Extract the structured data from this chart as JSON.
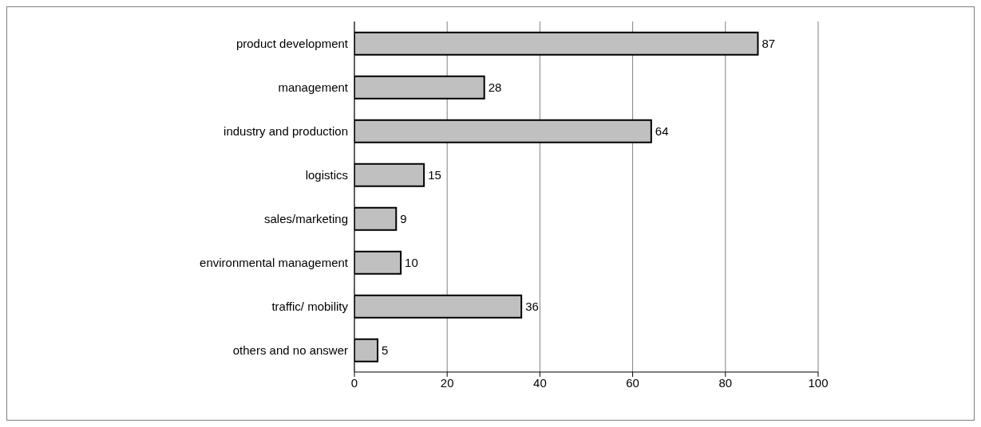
{
  "chart_data": {
    "type": "bar",
    "orientation": "horizontal",
    "categories": [
      "product development",
      "management",
      "industry and production",
      "logistics",
      "sales/marketing",
      "environmental management",
      "traffic/ mobility",
      "others and no answer"
    ],
    "values": [
      87,
      28,
      64,
      15,
      9,
      10,
      36,
      5
    ],
    "color": "#c0c0c0",
    "data_labels": true,
    "grid": "x",
    "xlim": [
      0,
      100
    ],
    "xticks": [
      0,
      20,
      40,
      60,
      80,
      100
    ]
  }
}
